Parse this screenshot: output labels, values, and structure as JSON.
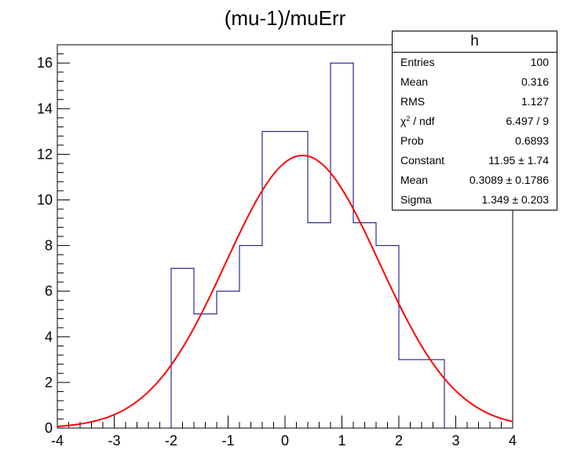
{
  "title": "(mu-1)/muErr",
  "stats": {
    "name": "h",
    "rows": [
      {
        "key": "Entries",
        "value": "100"
      },
      {
        "key": "Mean",
        "value": "0.316"
      },
      {
        "key": "RMS",
        "value": "1.127"
      },
      {
        "key": "chi2_ndf",
        "label_main": "χ",
        "label_sup": "2",
        "label_rest": " / ndf",
        "value": "6.497 / 9"
      },
      {
        "key": "Prob",
        "value": "0.6893"
      },
      {
        "key": "Constant",
        "value": "11.95 ± 1.74"
      },
      {
        "key": "Mean",
        "value": "0.3089 ± 0.1786"
      },
      {
        "key": "Sigma",
        "value": "1.349 ± 0.203"
      }
    ]
  },
  "chart_data": {
    "type": "histogram",
    "title": "(mu-1)/muErr",
    "xlim": [
      -4,
      4
    ],
    "ylim": [
      0,
      16.8
    ],
    "x_ticks": [
      "-4",
      "-3",
      "-2",
      "-1",
      "0",
      "1",
      "2",
      "3",
      "4"
    ],
    "y_ticks": [
      "0",
      "2",
      "4",
      "6",
      "8",
      "10",
      "12",
      "14",
      "16"
    ],
    "bin_edges": [
      -4.0,
      -3.6,
      -3.2,
      -2.8,
      -2.4,
      -2.0,
      -1.6,
      -1.2,
      -0.8,
      -0.4,
      0.0,
      0.4,
      0.8,
      1.2,
      1.6,
      2.0,
      2.4,
      2.8,
      3.2,
      3.6,
      4.0
    ],
    "counts": [
      0,
      0,
      0,
      0,
      0,
      7,
      5,
      6,
      8,
      13,
      13,
      9,
      16,
      9,
      8,
      3,
      3,
      0,
      0,
      0
    ],
    "histogram_color": "#000080",
    "fit": {
      "function": "gaus",
      "constant": 11.95,
      "mean": 0.3089,
      "sigma": 1.349,
      "color": "#ff0000"
    }
  }
}
